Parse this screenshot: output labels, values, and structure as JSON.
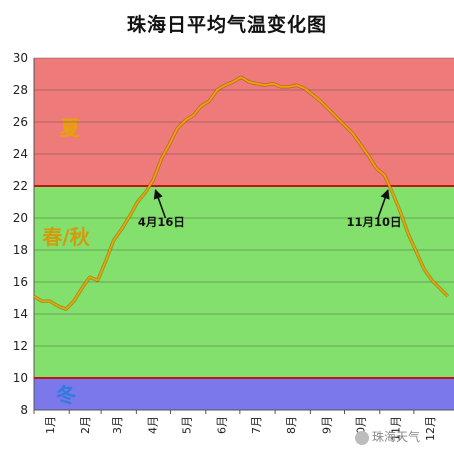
{
  "chart_data": {
    "type": "line",
    "title": "珠海日平均气温变化图",
    "xlabel": "",
    "ylabel": "",
    "ylim": [
      8,
      30
    ],
    "yticks": [
      8,
      10,
      12,
      14,
      16,
      18,
      20,
      22,
      24,
      26,
      28,
      30
    ],
    "categories": [
      "1月",
      "2月",
      "3月",
      "4月",
      "5月",
      "6月",
      "7月",
      "8月",
      "9月",
      "10月",
      "11月",
      "12月"
    ],
    "bands": [
      {
        "label": "夏",
        "from": 22,
        "to": 30,
        "color": "#ef7a7a",
        "text_color": "#e8a10a"
      },
      {
        "label": "春/秋",
        "from": 10,
        "to": 22,
        "color": "#84e06c",
        "text_color": "#d39a0e"
      },
      {
        "label": "冬",
        "from": 8,
        "to": 10,
        "color": "#7a78ea",
        "text_color": "#2f7be0"
      }
    ],
    "threshold_lines": [
      {
        "value": 22,
        "color": "#c01515"
      },
      {
        "value": 10,
        "color": "#c01515"
      }
    ],
    "series": [
      {
        "color": "#f0a000",
        "x": [
          1,
          8,
          15,
          22,
          29,
          36,
          43,
          50,
          57,
          64,
          71,
          78,
          85,
          92,
          99,
          106,
          113,
          120,
          127,
          134,
          141,
          148,
          155,
          162,
          169,
          176,
          183,
          190,
          197,
          204,
          211,
          218,
          225,
          232,
          239,
          246,
          253,
          260,
          267,
          274,
          281,
          288,
          295,
          302,
          309,
          316,
          323,
          330,
          337,
          344,
          351,
          358,
          365
        ],
        "y": [
          15.1,
          14.8,
          14.8,
          14.5,
          14.3,
          14.8,
          15.6,
          16.3,
          16.1,
          17.3,
          18.6,
          19.3,
          20.1,
          21.0,
          21.6,
          22.4,
          23.7,
          24.6,
          25.6,
          26.1,
          26.4,
          27.0,
          27.3,
          28.0,
          28.3,
          28.5,
          28.8,
          28.5,
          28.4,
          28.3,
          28.4,
          28.2,
          28.2,
          28.3,
          28.1,
          27.7,
          27.3,
          26.8,
          26.3,
          25.8,
          25.3,
          24.6,
          23.9,
          23.1,
          22.7,
          21.6,
          20.4,
          19.0,
          17.9,
          16.8,
          16.1,
          15.6,
          15.1
        ]
      }
    ],
    "annotations": [
      {
        "text": "4月16日",
        "x": 106,
        "y": 22
      },
      {
        "text": "11月10日",
        "x": 314,
        "y": 22
      }
    ],
    "legend": "none",
    "grid": true
  },
  "watermark": "珠海天气"
}
